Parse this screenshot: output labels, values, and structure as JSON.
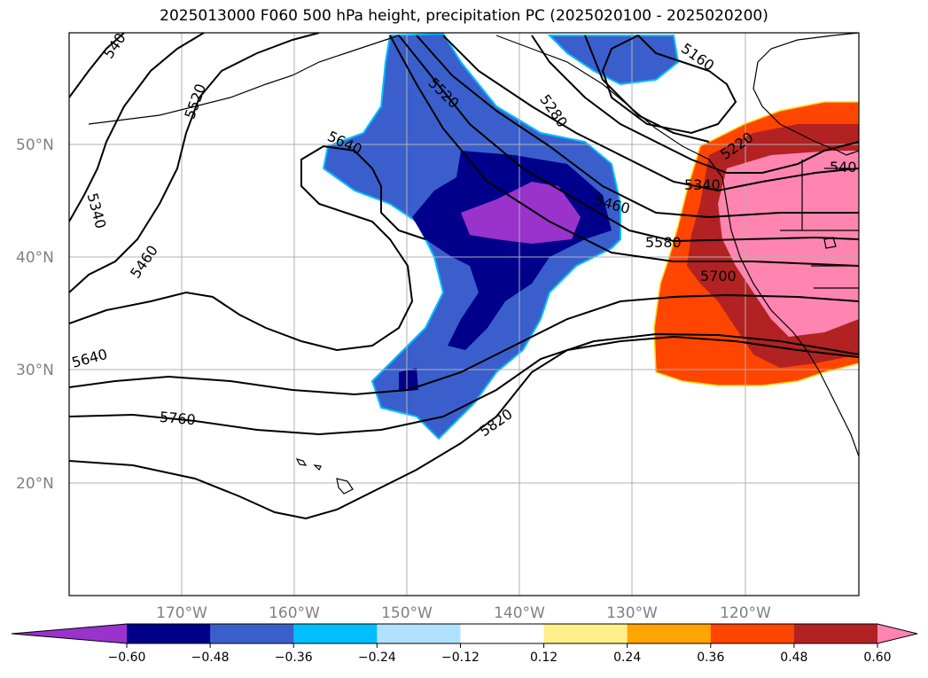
{
  "title": "2025013000 F060 500 hPa height, precipitation PC (2025020100 - 2025020200)",
  "map": {
    "latitude_labels": [
      "50°N",
      "40°N",
      "30°N",
      "20°N"
    ],
    "longitude_labels": [
      "170°W",
      "160°W",
      "150°W",
      "140°W",
      "130°W",
      "120°W"
    ],
    "grid": true,
    "contour_labels": [
      "540",
      "5520",
      "5340",
      "5460",
      "5640",
      "5520",
      "5640",
      "5280",
      "5160",
      "5220",
      "5340",
      "5460",
      "5580",
      "5700",
      "540",
      "5760",
      "5820"
    ],
    "shading": {
      "negative_region": "central North Pacific (purple/blue shades)",
      "positive_region": "US West Coast (orange/red/pink shades)"
    }
  },
  "colorbar": {
    "tick_labels": [
      "−0.60",
      "−0.48",
      "−0.36",
      "−0.24",
      "−0.12",
      "0.12",
      "0.24",
      "0.36",
      "0.48",
      "0.60"
    ],
    "colors": [
      "#9933cc",
      "#00008b",
      "#3a5fcd",
      "#00bfff",
      "#b0e2ff",
      "#ffffff",
      "#fff08a",
      "#ffa500",
      "#ff4500",
      "#b22222",
      "#ff85b0"
    ],
    "extend": "both"
  }
}
